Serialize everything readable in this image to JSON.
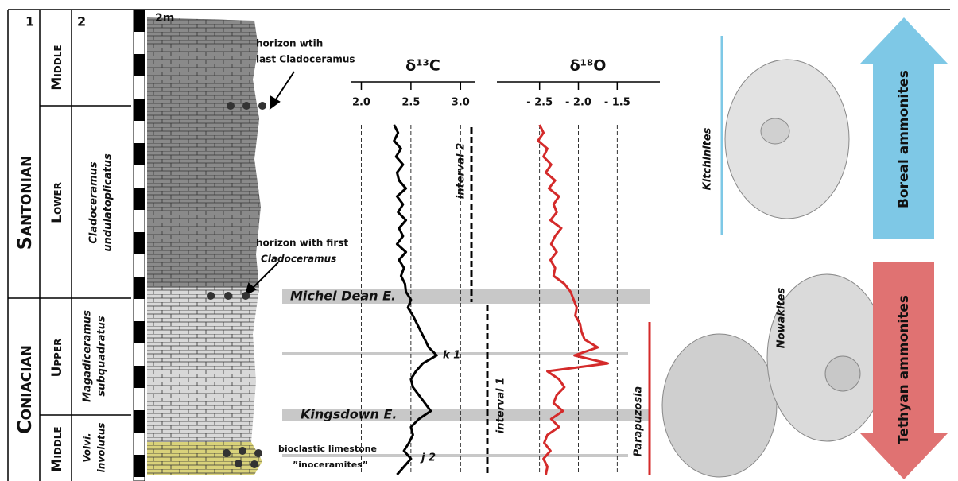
{
  "chart_data": [
    {
      "type": "line",
      "title": "δ¹³C",
      "xlim": [
        1.9,
        3.15
      ],
      "xticks": [
        {
          "value": 2,
          "label": "2.0"
        },
        2.5,
        {
          "value": 3,
          "label": "3.0"
        }
      ],
      "grid": true,
      "series": [
        {
          "color": "#000000",
          "values": [
            2.33,
            2.37,
            2.33,
            2.4,
            2.35,
            2.42,
            2.36,
            2.38,
            2.45,
            2.36,
            2.42,
            2.37,
            2.45,
            2.38,
            2.42,
            2.36,
            2.45,
            2.38,
            2.43,
            2.4,
            2.44,
            2.45,
            2.5,
            2.47,
            2.52,
            2.56,
            2.6,
            2.64,
            2.68,
            2.76,
            2.62,
            2.55,
            2.5,
            2.52,
            2.58,
            2.64,
            2.7,
            2.58,
            2.5,
            2.52,
            2.48,
            2.43,
            2.5,
            2.43,
            2.36
          ]
        }
      ]
    },
    {
      "type": "line",
      "title": "δ¹⁸O",
      "xlim": [
        -3.05,
        -0.95
      ],
      "xticks": [
        {
          "value": -2.5,
          "label": "- 2.5"
        },
        {
          "value": -2,
          "label": "- 2.0"
        },
        {
          "value": -1.5,
          "label": "- 1.5"
        }
      ],
      "grid": true,
      "series": [
        {
          "color": "#d42a2a",
          "values": [
            -2.5,
            -2.45,
            -2.52,
            -2.4,
            -2.45,
            -2.35,
            -2.42,
            -2.3,
            -2.38,
            -2.25,
            -2.32,
            -2.28,
            -2.36,
            -2.22,
            -2.3,
            -2.35,
            -2.28,
            -2.36,
            -2.3,
            -2.32,
            -2.18,
            -2.1,
            -2.06,
            -2.02,
            -2.04,
            -1.98,
            -1.96,
            -1.92,
            -1.75,
            -2.05,
            -1.62,
            -2.4,
            -2.25,
            -2.18,
            -2.28,
            -2.32,
            -2.2,
            -2.35,
            -2.25,
            -2.4,
            -2.44,
            -2.36,
            -2.45,
            -2.4,
            -2.42
          ]
        }
      ]
    }
  ],
  "stratigraphy": {
    "headers": [
      "1",
      "2"
    ],
    "stages": [
      "Santonian",
      "Coniacian"
    ],
    "substages": [
      "Middle",
      "Lower",
      "Upper",
      "Middle"
    ],
    "zones": [
      [
        "Cladoceramus",
        "undulatoplicatus"
      ],
      [
        "Magadiceramus",
        "subquadratus"
      ],
      [
        "Volvi.",
        "involutus"
      ]
    ],
    "scale": "2m"
  },
  "annotations": [
    [
      "horizon wtih",
      "last Cladoceramus"
    ],
    [
      "horizon with first",
      "Cladoceramus"
    ],
    [
      "bioclastic limestone",
      "”inoceramites”"
    ]
  ],
  "events": [
    "Michel Dean E.",
    "k 1",
    "Kingsdown E.",
    "j 2"
  ],
  "intervals": [
    "interval 2",
    "interval 1"
  ],
  "taxa": [
    "Kitchinites",
    "Nowakites",
    "Parapuzosia"
  ],
  "groups": [
    "Boreal ammonites",
    "Tethyan ammonites"
  ]
}
